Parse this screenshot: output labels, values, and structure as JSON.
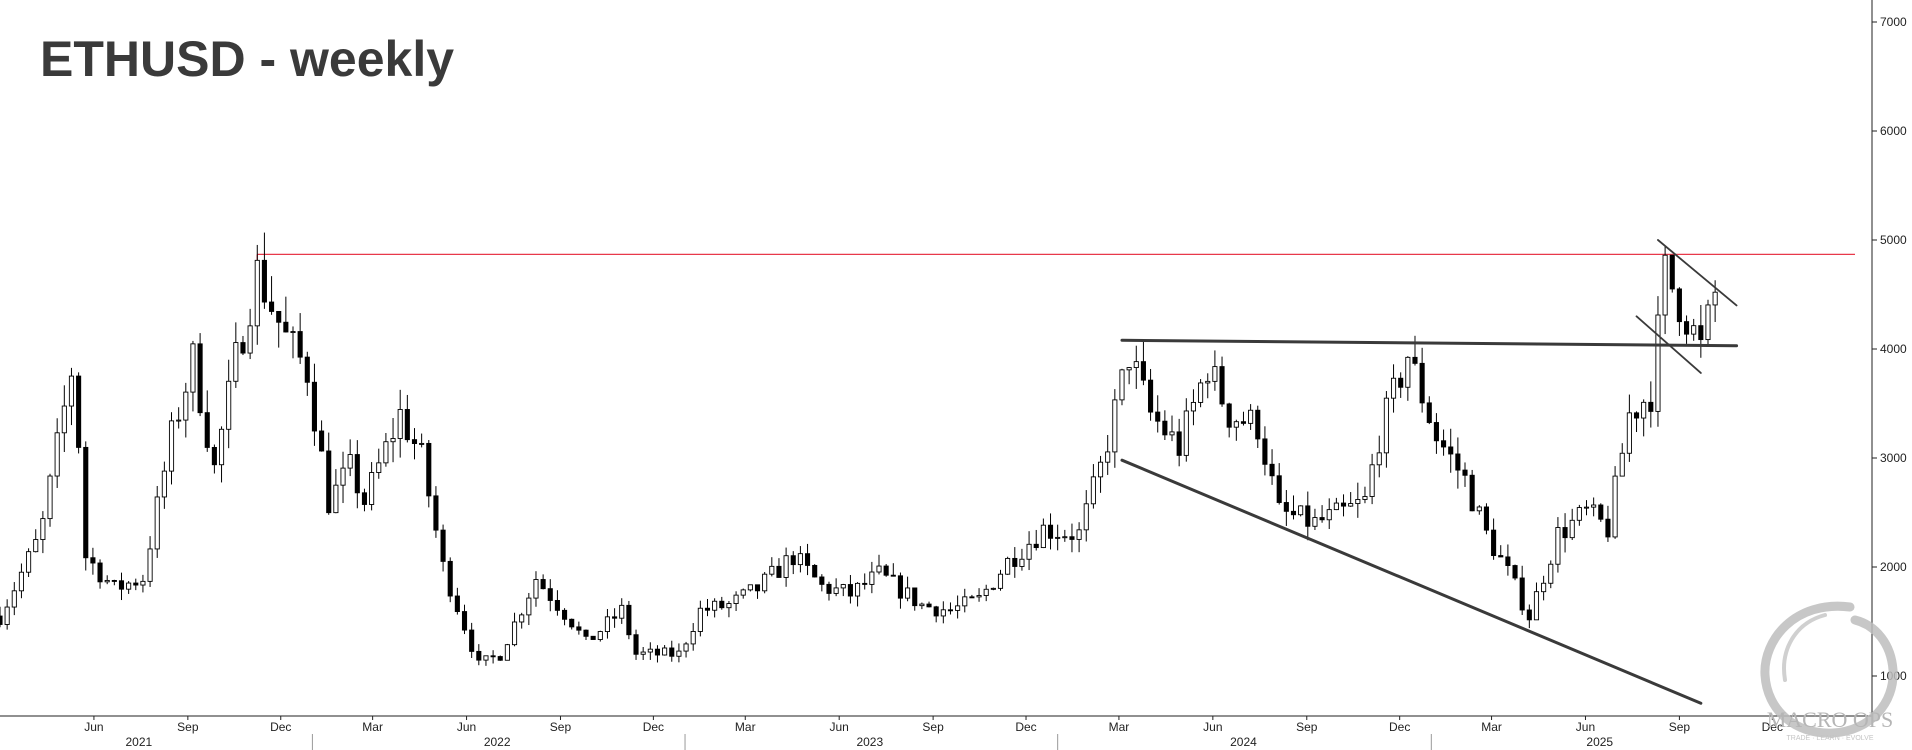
{
  "chart_data": {
    "type": "candlestick",
    "title": "ETHUSD - weekly",
    "ylim": [
      0,
      7300
    ],
    "y_ticks": [
      1000,
      2000,
      3000,
      4000,
      5000,
      6000,
      7000
    ],
    "month_ticks": [
      {
        "label": "Jun",
        "date": "2021-06-01"
      },
      {
        "label": "Sep",
        "date": "2021-09-01"
      },
      {
        "label": "Dec",
        "date": "2021-12-01"
      },
      {
        "label": "Mar",
        "date": "2022-03-01"
      },
      {
        "label": "Jun",
        "date": "2022-06-01"
      },
      {
        "label": "Sep",
        "date": "2022-09-01"
      },
      {
        "label": "Dec",
        "date": "2022-12-01"
      },
      {
        "label": "Mar",
        "date": "2023-03-01"
      },
      {
        "label": "Jun",
        "date": "2023-06-01"
      },
      {
        "label": "Sep",
        "date": "2023-09-01"
      },
      {
        "label": "Dec",
        "date": "2023-12-01"
      },
      {
        "label": "Mar",
        "date": "2024-03-01"
      },
      {
        "label": "Jun",
        "date": "2024-06-01"
      },
      {
        "label": "Sep",
        "date": "2024-09-01"
      },
      {
        "label": "Dec",
        "date": "2024-12-01"
      },
      {
        "label": "Mar",
        "date": "2025-03-01"
      },
      {
        "label": "Jun",
        "date": "2025-06-01"
      },
      {
        "label": "Sep",
        "date": "2025-09-01"
      },
      {
        "label": "Dec",
        "date": "2025-12-01"
      }
    ],
    "year_labels": [
      {
        "label": "2021",
        "date": "2021-07-15"
      },
      {
        "label": "2022",
        "date": "2022-07-01"
      },
      {
        "label": "2023",
        "date": "2023-07-01"
      },
      {
        "label": "2024",
        "date": "2024-07-01"
      },
      {
        "label": "2025",
        "date": "2025-06-15"
      }
    ],
    "close_anchors": [
      [
        "2021-03-01",
        1550
      ],
      [
        "2021-04-10",
        2300
      ],
      [
        "2021-05-12",
        3900
      ],
      [
        "2021-05-24",
        2100
      ],
      [
        "2021-06-21",
        1800
      ],
      [
        "2021-07-19",
        1900
      ],
      [
        "2021-08-16",
        3200
      ],
      [
        "2021-09-06",
        3900
      ],
      [
        "2021-09-27",
        2900
      ],
      [
        "2021-10-18",
        3900
      ],
      [
        "2021-11-08",
        4700
      ],
      [
        "2021-12-06",
        4100
      ],
      [
        "2021-12-27",
        3800
      ],
      [
        "2022-01-17",
        2600
      ],
      [
        "2022-02-07",
        2900
      ],
      [
        "2022-02-21",
        2600
      ],
      [
        "2022-03-28",
        3400
      ],
      [
        "2022-04-18",
        3000
      ],
      [
        "2022-05-09",
        2000
      ],
      [
        "2022-06-13",
        1100
      ],
      [
        "2022-07-04",
        1200
      ],
      [
        "2022-08-08",
        1900
      ],
      [
        "2022-09-12",
        1500
      ],
      [
        "2022-09-26",
        1300
      ],
      [
        "2022-10-31",
        1600
      ],
      [
        "2022-11-14",
        1200
      ],
      [
        "2022-12-26",
        1200
      ],
      [
        "2023-01-16",
        1600
      ],
      [
        "2023-02-13",
        1650
      ],
      [
        "2023-03-13",
        1800
      ],
      [
        "2023-04-17",
        2100
      ],
      [
        "2023-05-15",
        1820
      ],
      [
        "2023-06-12",
        1750
      ],
      [
        "2023-07-10",
        1930
      ],
      [
        "2023-08-21",
        1650
      ],
      [
        "2023-09-18",
        1600
      ],
      [
        "2023-10-16",
        1700
      ],
      [
        "2023-11-13",
        2050
      ],
      [
        "2023-12-18",
        2350
      ],
      [
        "2024-01-22",
        2300
      ],
      [
        "2024-02-12",
        2900
      ],
      [
        "2024-03-11",
        3950
      ],
      [
        "2024-04-01",
        3400
      ],
      [
        "2024-04-29",
        3100
      ],
      [
        "2024-05-27",
        3850
      ],
      [
        "2024-06-17",
        3400
      ],
      [
        "2024-07-15",
        3300
      ],
      [
        "2024-08-05",
        2500
      ],
      [
        "2024-09-09",
        2400
      ],
      [
        "2024-10-07",
        2500
      ],
      [
        "2024-10-28",
        2600
      ],
      [
        "2024-11-11",
        3200
      ],
      [
        "2024-12-09",
        3950
      ],
      [
        "2025-01-06",
        3200
      ],
      [
        "2025-02-03",
        2800
      ],
      [
        "2025-02-24",
        2300
      ],
      [
        "2025-03-17",
        1950
      ],
      [
        "2025-04-07",
        1550
      ],
      [
        "2025-05-05",
        2300
      ],
      [
        "2025-06-02",
        2500
      ],
      [
        "2025-06-23",
        2350
      ],
      [
        "2025-07-14",
        3400
      ],
      [
        "2025-08-04",
        3600
      ],
      [
        "2025-08-18",
        4700
      ],
      [
        "2025-09-08",
        4300
      ],
      [
        "2025-09-22",
        4000
      ],
      [
        "2025-10-06",
        4500
      ]
    ],
    "ohlc_series_end": "2025-10-06",
    "resistance_line": {
      "value": 4868,
      "from": "2021-11-08",
      "to": "2026-02-20",
      "color": "#e8394a"
    },
    "trendlines": [
      {
        "name": "neckline",
        "from": [
          "2024-03-04",
          4080
        ],
        "to": [
          "2025-10-27",
          4030
        ]
      },
      {
        "name": "lower-trendline",
        "from": [
          "2024-03-04",
          2980
        ],
        "to": [
          "2025-09-22",
          750
        ]
      },
      {
        "name": "flag-upper",
        "from": [
          "2025-08-11",
          5000
        ],
        "to": [
          "2025-10-27",
          4400
        ]
      },
      {
        "name": "flag-lower",
        "from": [
          "2025-07-21",
          4300
        ],
        "to": [
          "2025-09-22",
          3780
        ]
      }
    ],
    "watermark": "MACRO OPS",
    "watermark_sub": "TRADE · LEARN · EVOLVE"
  }
}
